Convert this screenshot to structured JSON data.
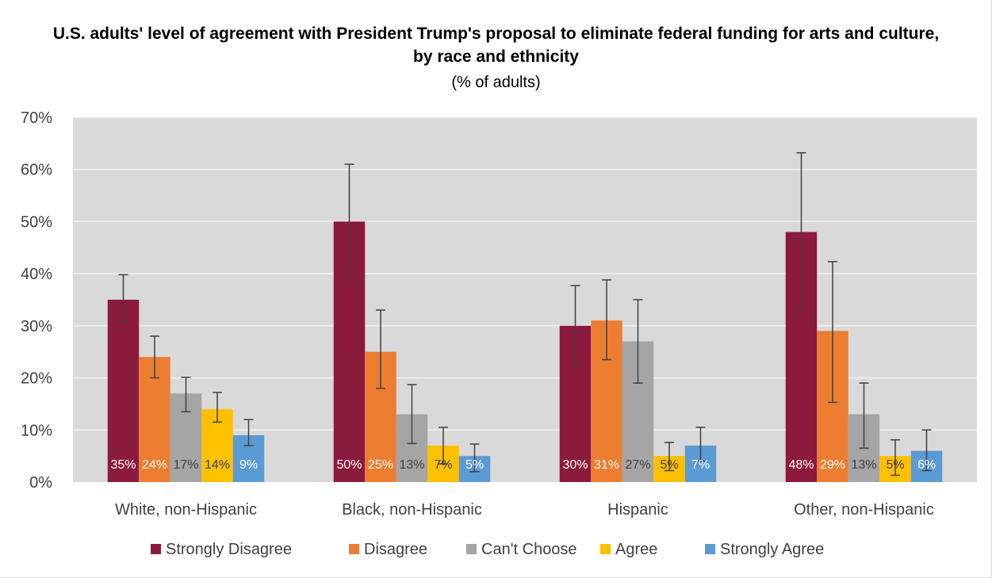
{
  "chart_data": {
    "type": "bar",
    "title": "U.S. adults' level of agreement with President Trump's proposal to eliminate federal funding for arts and culture, by race and ethnicity",
    "subtitle": "(% of adults)",
    "xlabel": "",
    "ylabel": "",
    "ylim": [
      0,
      70
    ],
    "y_ticks": [
      "0%",
      "10%",
      "20%",
      "30%",
      "40%",
      "50%",
      "60%",
      "70%"
    ],
    "grid": true,
    "legend_position": "bottom",
    "categories": [
      "White, non-Hispanic",
      "Black, non-Hispanic",
      "Hispanic",
      "Other, non-Hispanic"
    ],
    "series": [
      {
        "name": "Strongly Disagree",
        "color": "#8b1a3f",
        "values": [
          35,
          50,
          30,
          48
        ],
        "labels": [
          "35%",
          "50%",
          "30%",
          "48%"
        ],
        "error_low": [
          31,
          39.5,
          22.5,
          33
        ],
        "error_high": [
          39.8,
          61,
          37.7,
          63.2
        ]
      },
      {
        "name": "Disagree",
        "color": "#ed7d31",
        "values": [
          24,
          25,
          31,
          29
        ],
        "labels": [
          "24%",
          "25%",
          "31%",
          "29%"
        ],
        "error_low": [
          20,
          18,
          23.5,
          15.3
        ],
        "error_high": [
          28,
          33,
          38.8,
          42.3
        ]
      },
      {
        "name": "Can't Choose",
        "color": "#a5a5a5",
        "values": [
          17,
          13,
          27,
          13
        ],
        "labels": [
          "17%",
          "13%",
          "27%",
          "13%"
        ],
        "error_low": [
          13.5,
          7.4,
          19,
          6.5
        ],
        "error_high": [
          20.1,
          18.7,
          35,
          19
        ]
      },
      {
        "name": "Agree",
        "color": "#ffc000",
        "values": [
          14,
          7,
          5,
          5
        ],
        "labels": [
          "14%",
          "7%",
          "5%",
          "5%"
        ],
        "error_low": [
          11.5,
          3.5,
          2.2,
          1.3
        ],
        "error_high": [
          17.2,
          10.5,
          7.6,
          8.1
        ]
      },
      {
        "name": "Strongly Agree",
        "color": "#5b9bd5",
        "values": [
          9,
          5,
          7,
          6
        ],
        "labels": [
          "9%",
          "5%",
          "7%",
          "6%"
        ],
        "error_low": [
          7,
          2,
          4,
          2.2
        ],
        "error_high": [
          12,
          7.3,
          10.5,
          10
        ]
      }
    ]
  }
}
